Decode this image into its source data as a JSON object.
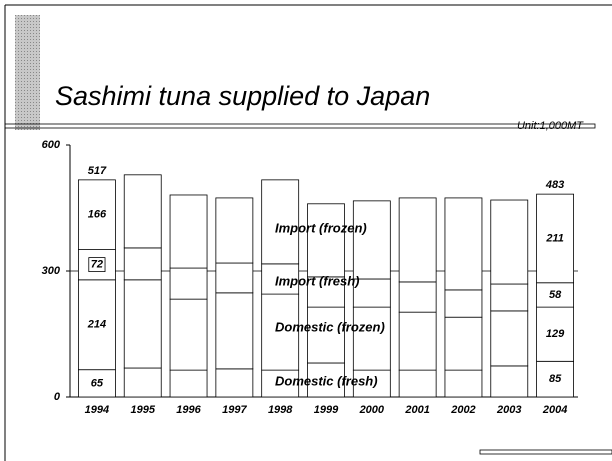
{
  "chart_data": {
    "type": "stacked_bar",
    "title": "Sashimi tuna supplied to Japan",
    "unit": "Unit:1,000MT",
    "categories": [
      "1994",
      "1995",
      "1996",
      "1997",
      "1998",
      "1999",
      "2000",
      "2001",
      "2002",
      "2003",
      "2004"
    ],
    "series": [
      {
        "name": "Domestic (fresh)",
        "color": "#ffffff",
        "values": [
          65,
          69,
          64,
          67,
          64,
          81,
          64,
          64,
          64,
          74,
          85
        ]
      },
      {
        "name": "Domestic (frozen)",
        "color": "#ffffff",
        "values": [
          214,
          210,
          169,
          181,
          181,
          133,
          150,
          138,
          126,
          131,
          129
        ]
      },
      {
        "name": "Import (fresh)",
        "color": "#ffffff",
        "values": [
          72,
          76,
          74,
          71,
          72,
          72,
          67,
          72,
          65,
          64,
          58
        ]
      },
      {
        "name": "Import (frozen)",
        "color": "#ffffff",
        "values": [
          166,
          174,
          174,
          155,
          200,
          174,
          186,
          200,
          219,
          200,
          211
        ]
      }
    ],
    "totals": [
      517,
      null,
      null,
      null,
      null,
      null,
      null,
      null,
      null,
      null,
      483
    ],
    "ylim": [
      0,
      600
    ],
    "yticks": [
      0,
      300,
      600
    ],
    "grid": true
  }
}
